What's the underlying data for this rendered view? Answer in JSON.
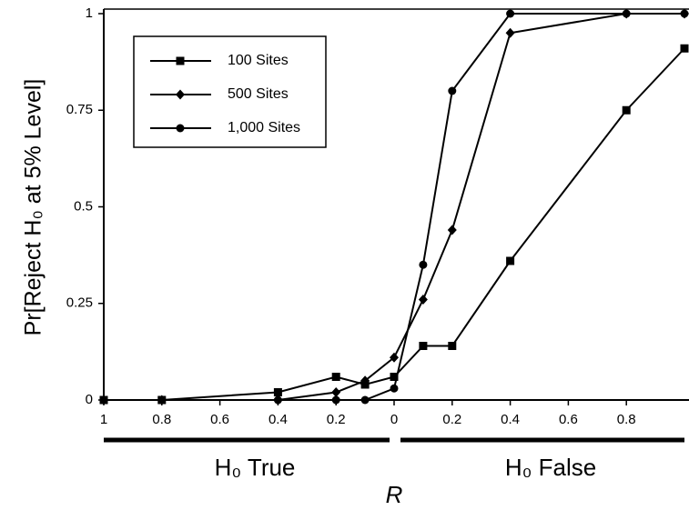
{
  "chart_data": {
    "type": "line",
    "y_label": "Pr[Reject H₀ at 5% Level]",
    "x_label": "R",
    "annotations": [
      "H₀ True",
      "H₀ False"
    ],
    "x": [
      -1,
      -0.8,
      -0.4,
      -0.2,
      -0.1,
      0,
      0.1,
      0.2,
      0.4,
      0.8,
      1
    ],
    "series": [
      {
        "name": "100 Sites",
        "color": "#000000",
        "marker": "square",
        "values": [
          0,
          0,
          0.02,
          0.06,
          0.04,
          0.06,
          0.14,
          0.14,
          0.36,
          0.75,
          0.91
        ]
      },
      {
        "name": "500 Sites",
        "color": "#000000",
        "marker": "diamond",
        "values": [
          0,
          0,
          0,
          0.02,
          0.05,
          0.11,
          0.26,
          0.44,
          0.95,
          1,
          1
        ]
      },
      {
        "name": "1,000 Sites",
        "color": "#000000",
        "marker": "circle",
        "values": [
          0,
          0,
          0,
          0,
          0,
          0.03,
          0.35,
          0.8,
          1,
          1,
          1
        ]
      }
    ],
    "xlim": [
      -1,
      1
    ],
    "xticks": [
      {
        "value": -1,
        "label": "1"
      },
      {
        "value": -0.8,
        "label": "0.8"
      },
      {
        "value": -0.6,
        "label": "0.6"
      },
      {
        "value": -0.4,
        "label": "0.4"
      },
      {
        "value": -0.2,
        "label": "0.2"
      },
      0,
      0.2,
      0.4,
      0.6,
      0.8
    ],
    "ylim": [
      0,
      1
    ],
    "yticks": [
      0,
      0.25,
      0.5,
      0.75,
      1
    ],
    "legend": "upper-left"
  }
}
